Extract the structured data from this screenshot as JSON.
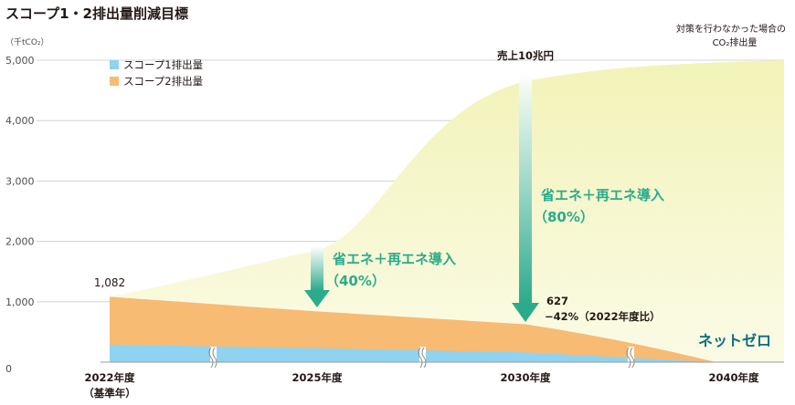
{
  "chart_data": {
    "type": "area",
    "title": "スコープ1・2排出量削減目標",
    "unit_label": "（千tCO₂）",
    "yticks": [
      "5,000",
      "4,000",
      "3,000",
      "2,000",
      "1,000",
      "0"
    ],
    "ylim": [
      0,
      5000
    ],
    "grid": true,
    "x_categories": [
      {
        "line1": "2022年度",
        "line2": "（基準年）"
      },
      {
        "line1": "2025年度",
        "line2": ""
      },
      {
        "line1": "2030年度",
        "line2": ""
      },
      {
        "line1": "2040年度",
        "line2": ""
      }
    ],
    "legend_position": "top-left",
    "series": [
      {
        "name": "スコープ1排出量",
        "color": "#8fd3f1",
        "values": [
          290,
          230,
          160,
          0
        ]
      },
      {
        "name": "スコープ2排出量",
        "color": "#f7bb74",
        "values": [
          792,
          610,
          467,
          0
        ]
      }
    ],
    "bau_curve": {
      "color": "#f5f6c2",
      "label_line1": "対策を行わなかった場合の",
      "label_line2": "CO₂排出量",
      "values": [
        1082,
        1850,
        4650,
        5000
      ]
    },
    "annotations": {
      "start_value": "1,082",
      "sales_label": "売上10兆円",
      "arrow1_line1": "省エネ＋再エネ導入",
      "arrow1_line2": "（40%）",
      "arrow2_line1": "省エネ＋再エネ導入",
      "arrow2_line2": "（80%）",
      "value_2030": "627",
      "value_2030_note": "−42%（2022年度比）",
      "net_zero": "ネットゼロ"
    },
    "colors": {
      "arrow": "#2bab8c",
      "grid": "#c9c9c9"
    }
  }
}
